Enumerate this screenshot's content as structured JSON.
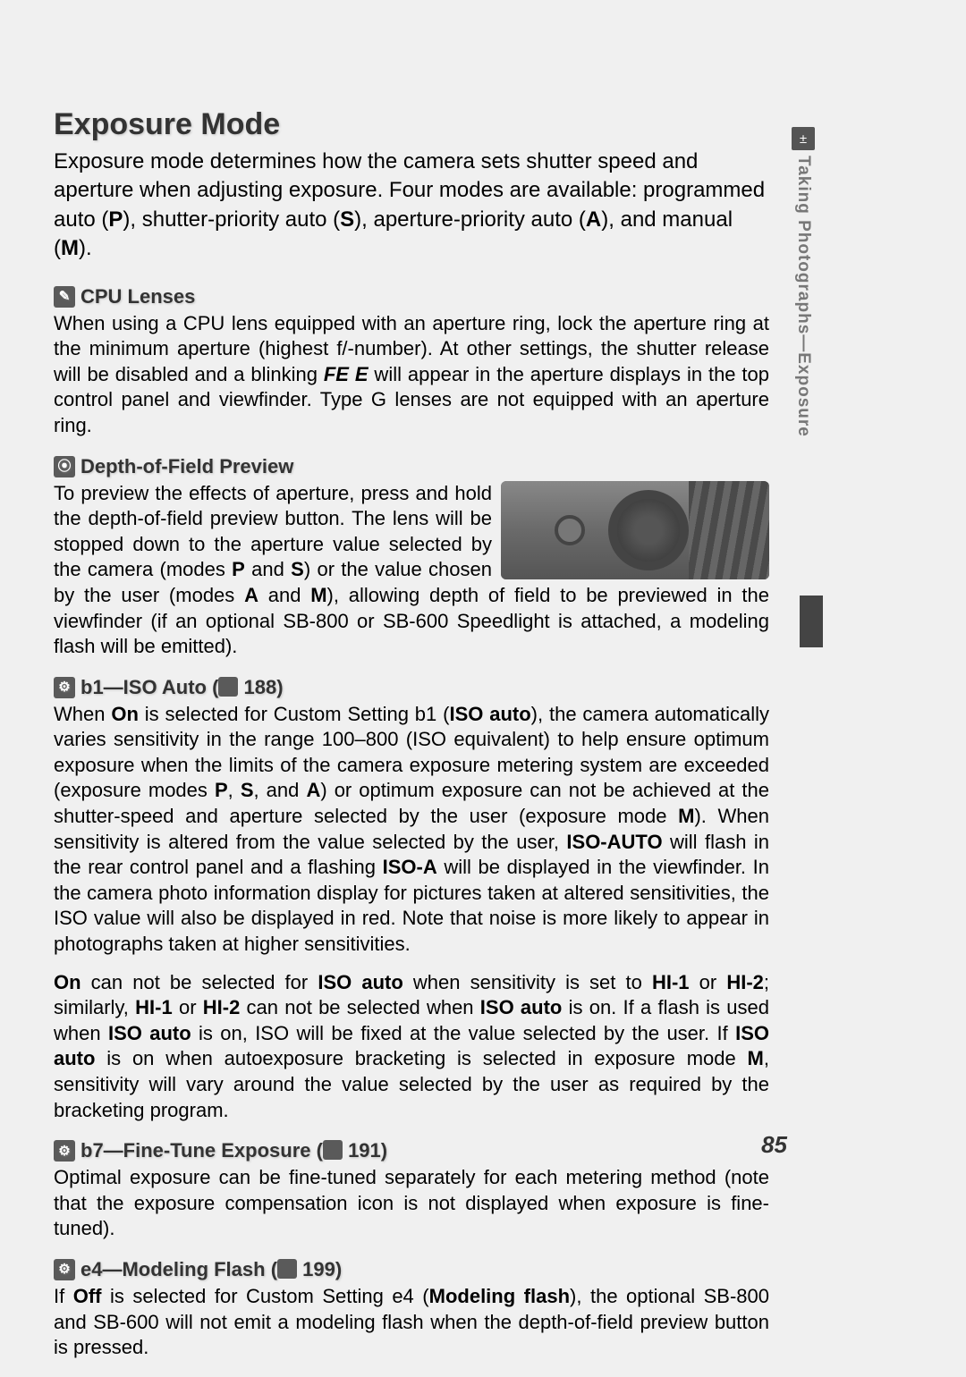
{
  "page_number": "85",
  "sidebar": {
    "label": "Taking Photographs—Exposure",
    "icon": "±"
  },
  "title": "Exposure Mode",
  "intro_html": "Exposure mode determines how the camera sets shutter speed and aperture when adjusting exposure.  Four modes are available: programmed auto (<b>P</b>), shutter-priority auto (<b>S</b>), aperture-priority auto (<b>A</b>), and manual (<b>M</b>).",
  "sections": [
    {
      "icon": "✎",
      "heading": "CPU Lenses",
      "body_html": "When using a CPU lens equipped with an aperture ring, lock the aperture ring at the minimum aperture (highest f/-number).  At other settings, the shutter release will be disabled and a blinking <b><i>FE E</i></b> will appear in the aperture displays in the top control panel and viewfinder.  Type G lenses are not equipped with an aperture ring."
    },
    {
      "icon": "⦿",
      "heading": "Depth-of-Field Preview",
      "has_image": true,
      "body_html": "To preview the effects of aperture, press and hold the depth-of-field preview button.  The lens will be stopped down to the aperture value selected by the camera (modes <b>P</b> and <b>S</b>) or the value chosen by the user (modes <b>A</b> and <b>M</b>), allowing depth of field to be previewed in the viewfinder (if an optional SB-800 or SB-600 Speedlight is attached, a modeling flash will be emitted)."
    },
    {
      "icon": "⚙",
      "heading": "b1—ISO Auto",
      "page_ref": "188",
      "body_html": "When <b>On</b> is selected for Custom Setting b1 (<b>ISO auto</b>), the camera automatically varies sensitivity in the range 100–800 (ISO equivalent) to help ensure optimum exposure when the limits of the camera exposure metering system are exceeded (exposure modes <b>P</b>, <b>S</b>, and <b>A</b>) or optimum exposure can not be achieved at the shutter-speed and aperture selected by the user (exposure mode <b>M</b>).  When sensitivity is altered from the value selected by the user, <b>ISO-AUTO</b> will flash in the rear control panel and a flashing <b>ISO-A</b> will be displayed in the viewfinder.  In the camera photo information display for pictures taken at altered sensitivities, the ISO value will also be displayed in red.  Note that noise is more likely to appear in photographs taken at higher sensitivities.",
      "body2_html": "<b>On</b> can not be selected for <b>ISO auto</b> when sensitivity is set to <b>HI-1</b> or <b>HI-2</b>; similarly, <b>HI-1</b> or <b>HI-2</b> can not be selected when <b>ISO auto</b> is on.  If a flash is used when <b>ISO auto</b> is on, ISO will be fixed at the value selected by the user.  If <b>ISO auto</b> is on when autoexposure bracketing is selected in exposure mode <b>M</b>, sensitivity will vary around the value selected by the user as required by the bracketing program."
    },
    {
      "icon": "⚙",
      "heading": "b7—Fine-Tune Exposure",
      "page_ref": "191",
      "body_html": "Optimal exposure can be fine-tuned separately for each metering method (note that the exposure compensation icon is not displayed when exposure is fine-tuned)."
    },
    {
      "icon": "⚙",
      "heading": "e4—Modeling Flash",
      "page_ref": "199",
      "body_html": "If <b>Off</b> is selected for Custom Setting e4 (<b>Modeling flash</b>), the optional SB-800 and SB-600 will not emit a modeling flash when the depth-of-field preview button is pressed."
    }
  ]
}
